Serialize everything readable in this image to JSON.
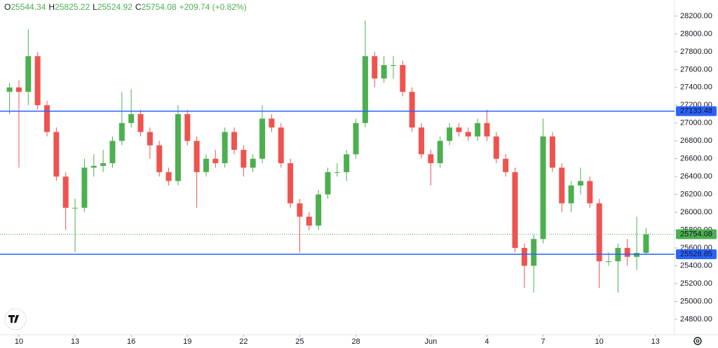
{
  "chart_data": {
    "type": "candlestick",
    "legend": [
      {
        "label": "O",
        "value": "25544.34"
      },
      {
        "label": "H",
        "value": "25825.22"
      },
      {
        "label": "L",
        "value": "25524.92"
      },
      {
        "label": "C",
        "value": "25754.08"
      }
    ],
    "change": "+209.74 (+0.82%)",
    "open": [
      27350,
      27400,
      27350,
      27750,
      27200,
      26900,
      26400,
      26050,
      26050,
      26500,
      26520,
      26550,
      26800,
      27000,
      27100,
      26900,
      26750,
      26450,
      26350,
      27100,
      26800,
      26450,
      26600,
      26550,
      26900,
      26700,
      26500,
      26600,
      27050,
      26950,
      26550,
      26100,
      25950,
      25850,
      26200,
      26450,
      26450,
      26650,
      27000,
      27750,
      27500,
      27650,
      27650,
      27350,
      26950,
      26650,
      26550,
      26800,
      26950,
      26900,
      26850,
      27000,
      26850,
      26600,
      26450,
      25600,
      25400,
      25700,
      26850,
      26500,
      26100,
      26300,
      26350,
      26100,
      25450,
      25450,
      25600,
      25500,
      25544.34
    ],
    "high": [
      27450,
      27480,
      28050,
      27800,
      27250,
      26950,
      26450,
      26150,
      26600,
      26650,
      26700,
      26850,
      27350,
      27380,
      27150,
      26950,
      26800,
      26500,
      27200,
      27150,
      26850,
      26650,
      26700,
      26950,
      26950,
      26750,
      26650,
      27200,
      27100,
      27000,
      26600,
      26150,
      26000,
      26250,
      26500,
      26550,
      26700,
      27050,
      28150,
      27800,
      27750,
      27750,
      27700,
      27400,
      27000,
      26700,
      26850,
      27000,
      27000,
      26950,
      27050,
      27150,
      26900,
      26650,
      26500,
      25650,
      25750,
      27050,
      26900,
      26550,
      26350,
      26500,
      26400,
      26150,
      25550,
      25650,
      25700,
      25950,
      25825.22
    ],
    "low": [
      27100,
      26500,
      27200,
      27150,
      26850,
      26350,
      25800,
      25550,
      26000,
      26400,
      26450,
      26500,
      26750,
      26950,
      26850,
      26600,
      26400,
      26300,
      26300,
      26750,
      26050,
      26400,
      26500,
      26500,
      26650,
      26400,
      26450,
      26550,
      26900,
      26500,
      26050,
      25550,
      25800,
      25800,
      26150,
      26400,
      26350,
      26600,
      26950,
      27400,
      27450,
      27500,
      27300,
      26900,
      26600,
      26300,
      26500,
      26750,
      26850,
      26800,
      26800,
      26800,
      26550,
      26400,
      25550,
      25150,
      25100,
      25650,
      26450,
      26000,
      26000,
      26200,
      26050,
      25150,
      25400,
      25100,
      25400,
      25350,
      25524.92
    ],
    "close": [
      27400,
      27350,
      27750,
      27200,
      26900,
      26400,
      26050,
      26050,
      26500,
      26520,
      26550,
      26800,
      27000,
      27100,
      26900,
      26750,
      26450,
      26350,
      27100,
      26800,
      26450,
      26600,
      26550,
      26900,
      26700,
      26500,
      26600,
      27050,
      26950,
      26550,
      26100,
      25950,
      25850,
      26200,
      26450,
      26450,
      26650,
      27000,
      27750,
      27500,
      27650,
      27650,
      27350,
      26950,
      26650,
      26550,
      26800,
      26950,
      26900,
      26850,
      27000,
      26850,
      26600,
      26450,
      25600,
      25400,
      25700,
      26850,
      26500,
      26100,
      26300,
      26350,
      26100,
      25450,
      25450,
      25600,
      25500,
      25544.34,
      25754.08
    ],
    "up_color": "#4caf50",
    "down_color": "#ef5350",
    "levels": [
      {
        "value": 27133.48,
        "color": "#2962ff"
      },
      {
        "value": 25528.85,
        "color": "#2962ff"
      }
    ],
    "last_price": 25754.08,
    "ylim": [
      24627,
      28380
    ],
    "yticks": [
      {
        "value": 24800,
        "label": "24800.00"
      },
      {
        "value": 25000,
        "label": "25000.00"
      },
      {
        "value": 25200,
        "label": "25200.00"
      },
      {
        "value": 25400,
        "label": "25400.00"
      },
      {
        "value": 25600,
        "label": "25600.00"
      },
      {
        "value": 25800,
        "label": "25800.00"
      },
      {
        "value": 26000,
        "label": "26000.00"
      },
      {
        "value": 26200,
        "label": "26200.00"
      },
      {
        "value": 26400,
        "label": "26400.00"
      },
      {
        "value": 26600,
        "label": "26600.00"
      },
      {
        "value": 26800,
        "label": "26800.00"
      },
      {
        "value": 27000,
        "label": "27000.00"
      },
      {
        "value": 27200,
        "label": "27200.00"
      },
      {
        "value": 27400,
        "label": "27400.00"
      },
      {
        "value": 27600,
        "label": "27600.00"
      },
      {
        "value": 27800,
        "label": "27800.00"
      },
      {
        "value": 28000,
        "label": "28000.00"
      },
      {
        "value": 28200,
        "label": "28200.00"
      }
    ],
    "xlim": [
      -1.02,
      71.04
    ],
    "xticks": [
      {
        "value": 1,
        "label": "10"
      },
      {
        "value": 7,
        "label": "13"
      },
      {
        "value": 13,
        "label": "16"
      },
      {
        "value": 19,
        "label": "19"
      },
      {
        "value": 25,
        "label": "22"
      },
      {
        "value": 31,
        "label": "25"
      },
      {
        "value": 37,
        "label": "28"
      },
      {
        "value": 45,
        "label": "Jun"
      },
      {
        "value": 51,
        "label": "4"
      },
      {
        "value": 57,
        "label": "7"
      },
      {
        "value": 63,
        "label": "10"
      },
      {
        "value": 69,
        "label": "13"
      }
    ]
  }
}
